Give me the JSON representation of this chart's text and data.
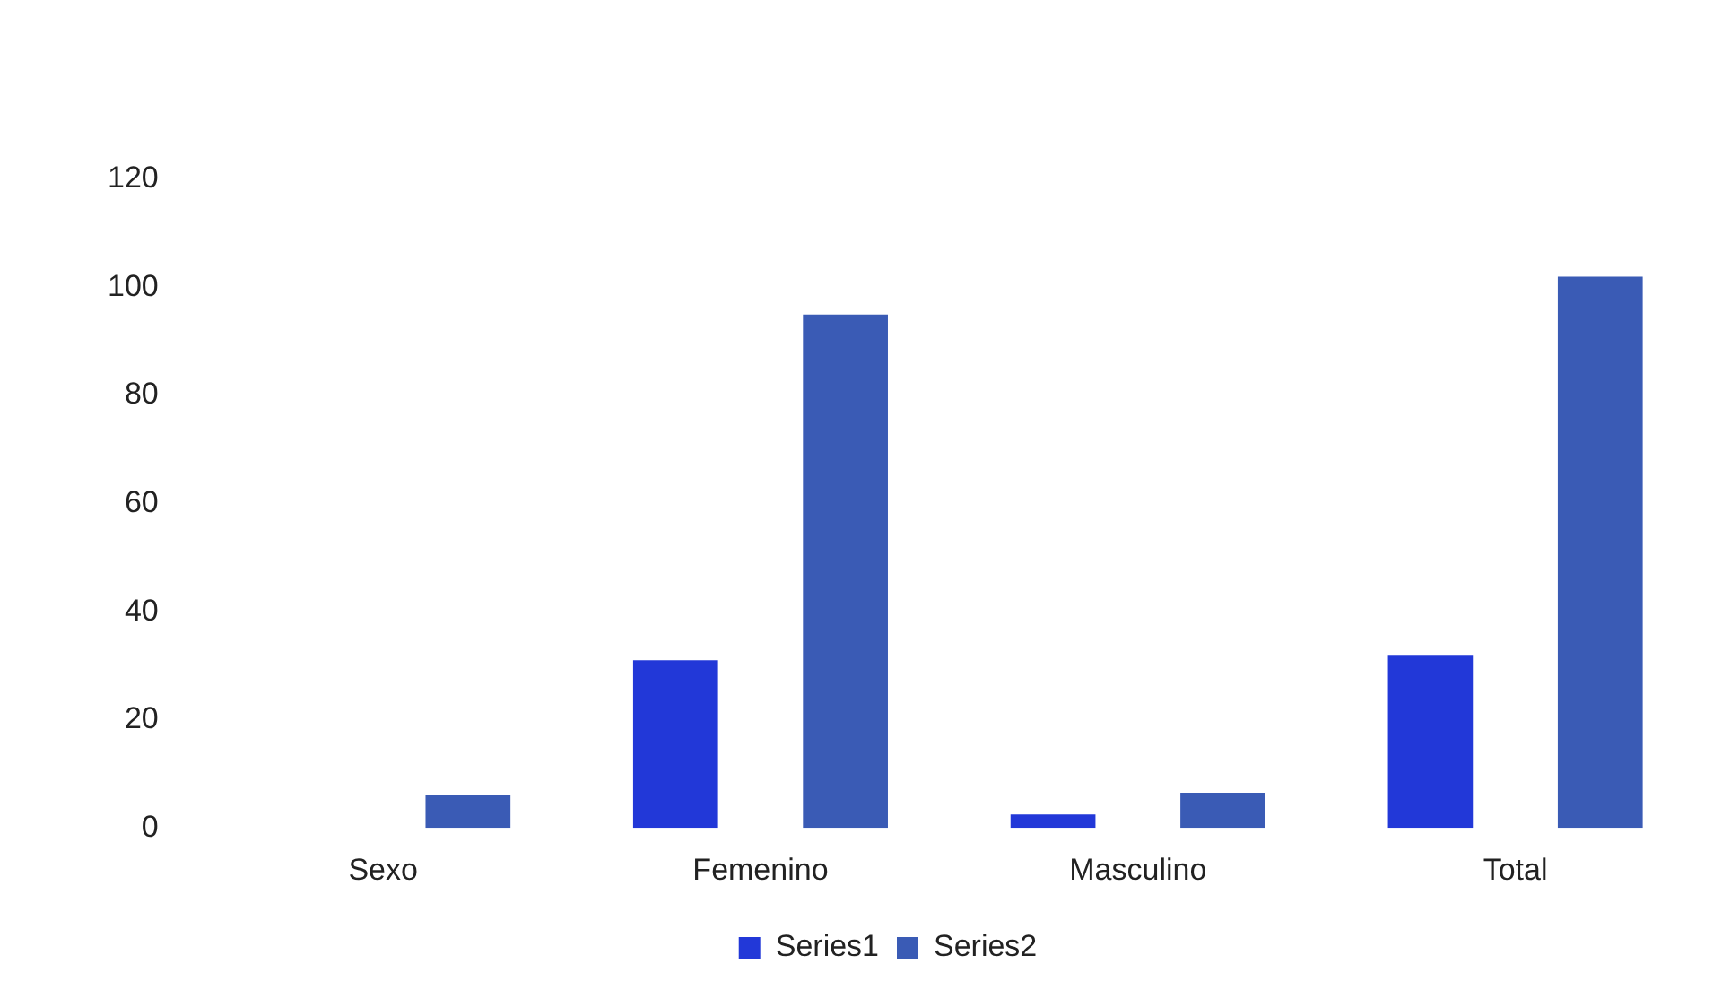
{
  "chart_data": {
    "type": "bar",
    "categories": [
      "Sexo",
      "Femenino",
      "Masculino",
      "Total"
    ],
    "series": [
      {
        "name": "Series1",
        "color": "#2238d8",
        "values": [
          0,
          31,
          2.5,
          32
        ]
      },
      {
        "name": "Series2",
        "color": "#3a5bb5",
        "values": [
          6,
          95,
          6.5,
          102
        ]
      }
    ],
    "ylim": [
      0,
      120
    ],
    "yticks": [
      0,
      20,
      40,
      60,
      80,
      100,
      120
    ],
    "grid": false,
    "legend": "bottom"
  }
}
